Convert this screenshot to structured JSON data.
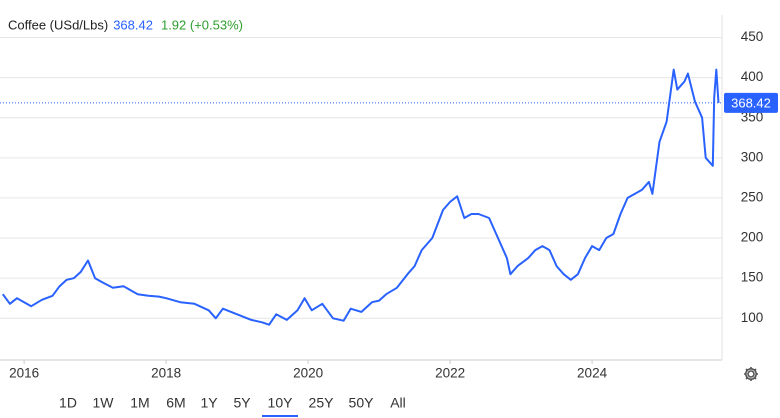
{
  "chart_data": {
    "type": "line",
    "title": "Coffee (USd/Lbs)",
    "color": "#2962ff",
    "last_value": 368.42,
    "x": [
      2015.7,
      2015.8,
      2015.9,
      2016.0,
      2016.1,
      2016.25,
      2016.4,
      2016.5,
      2016.6,
      2016.7,
      2016.8,
      2016.9,
      2017.0,
      2017.1,
      2017.25,
      2017.4,
      2017.5,
      2017.6,
      2017.75,
      2017.9,
      2018.0,
      2018.2,
      2018.4,
      2018.6,
      2018.7,
      2018.8,
      2019.0,
      2019.2,
      2019.35,
      2019.45,
      2019.55,
      2019.7,
      2019.85,
      2019.95,
      2020.05,
      2020.2,
      2020.35,
      2020.5,
      2020.6,
      2020.75,
      2020.9,
      2021.0,
      2021.1,
      2021.25,
      2021.4,
      2021.5,
      2021.6,
      2021.75,
      2021.9,
      2022.0,
      2022.1,
      2022.2,
      2022.3,
      2022.4,
      2022.55,
      2022.65,
      2022.8,
      2022.85,
      2022.95,
      2023.1,
      2023.2,
      2023.3,
      2023.4,
      2023.5,
      2023.6,
      2023.7,
      2023.8,
      2023.9,
      2024.0,
      2024.1,
      2024.2,
      2024.3,
      2024.4,
      2024.5,
      2024.6,
      2024.7,
      2024.8,
      2024.85,
      2024.95,
      2025.05,
      2025.15,
      2025.2,
      2025.3,
      2025.35,
      2025.45,
      2025.55,
      2025.6,
      2025.7,
      2025.72,
      2025.75,
      2025.78
    ],
    "values": [
      130,
      118,
      125,
      120,
      115,
      123,
      128,
      140,
      148,
      150,
      158,
      172,
      150,
      145,
      138,
      140,
      135,
      130,
      128,
      127,
      125,
      120,
      118,
      110,
      100,
      112,
      105,
      98,
      95,
      92,
      105,
      98,
      110,
      125,
      110,
      118,
      100,
      97,
      112,
      108,
      120,
      122,
      130,
      138,
      155,
      165,
      185,
      200,
      235,
      245,
      252,
      225,
      230,
      230,
      225,
      205,
      175,
      155,
      165,
      175,
      185,
      190,
      185,
      165,
      155,
      148,
      155,
      175,
      190,
      185,
      200,
      205,
      230,
      250,
      255,
      260,
      270,
      255,
      320,
      345,
      410,
      385,
      395,
      405,
      370,
      350,
      300,
      290,
      375,
      410,
      368.42
    ],
    "xlim": [
      2015.66,
      2025.83
    ],
    "ylim": [
      48,
      478
    ],
    "xticks": [
      2016,
      2018,
      2020,
      2022,
      2024
    ],
    "yticks": [
      100,
      150,
      200,
      250,
      300,
      350,
      400,
      450
    ],
    "grid": true
  },
  "header": {
    "change": "1.92 (+0.53%)"
  },
  "range_buttons": [
    "1D",
    "1W",
    "1M",
    "6M",
    "1Y",
    "5Y",
    "10Y",
    "25Y",
    "50Y",
    "All"
  ]
}
